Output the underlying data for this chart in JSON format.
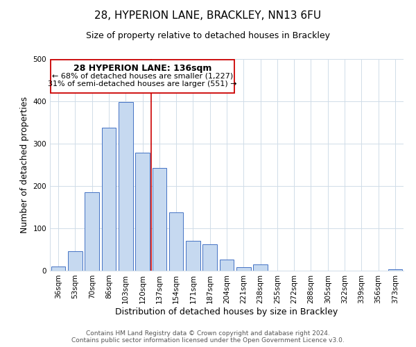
{
  "title": "28, HYPERION LANE, BRACKLEY, NN13 6FU",
  "subtitle": "Size of property relative to detached houses in Brackley",
  "xlabel": "Distribution of detached houses by size in Brackley",
  "ylabel": "Number of detached properties",
  "bin_labels": [
    "36sqm",
    "53sqm",
    "70sqm",
    "86sqm",
    "103sqm",
    "120sqm",
    "137sqm",
    "154sqm",
    "171sqm",
    "187sqm",
    "204sqm",
    "221sqm",
    "238sqm",
    "255sqm",
    "272sqm",
    "288sqm",
    "305sqm",
    "322sqm",
    "339sqm",
    "356sqm",
    "373sqm"
  ],
  "bar_heights": [
    10,
    46,
    185,
    338,
    398,
    278,
    243,
    137,
    70,
    62,
    26,
    8,
    15,
    0,
    0,
    0,
    0,
    0,
    0,
    0,
    3
  ],
  "bar_color": "#c6d9f0",
  "bar_edge_color": "#4472c4",
  "vline_color": "#cc0000",
  "ylim": [
    0,
    500
  ],
  "annotation_title": "28 HYPERION LANE: 136sqm",
  "annotation_line1": "← 68% of detached houses are smaller (1,227)",
  "annotation_line2": "31% of semi-detached houses are larger (551) →",
  "annotation_box_color": "#ffffff",
  "annotation_box_edge": "#cc0000",
  "footer_line1": "Contains HM Land Registry data © Crown copyright and database right 2024.",
  "footer_line2": "Contains public sector information licensed under the Open Government Licence v3.0.",
  "title_fontsize": 11,
  "subtitle_fontsize": 9,
  "axis_label_fontsize": 9,
  "tick_fontsize": 7.5,
  "annotation_title_fontsize": 9,
  "annotation_text_fontsize": 8,
  "footer_fontsize": 6.5,
  "background_color": "#ffffff",
  "grid_color": "#d0dce8"
}
